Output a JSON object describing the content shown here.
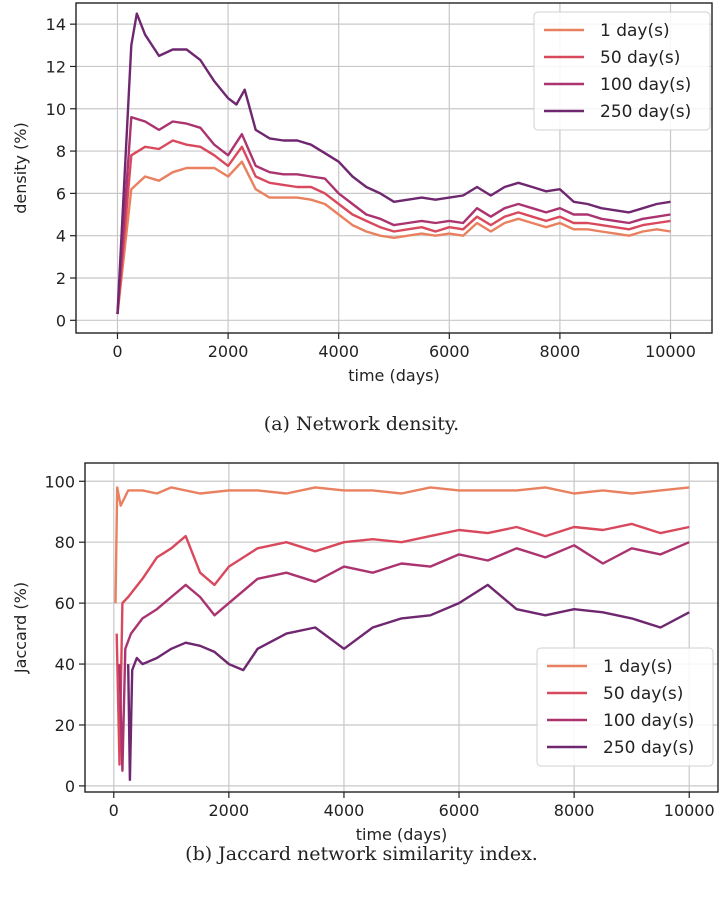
{
  "colors": {
    "1 day(s)": "#e9805f",
    "50 day(s)": "#d9495e",
    "100 day(s)": "#ab3470",
    "250 day(s)": "#6f2770"
  },
  "chart_data": [
    {
      "type": "line",
      "title": "",
      "caption": "(a) Network density.",
      "xlabel": "time (days)",
      "ylabel": "density (%)",
      "xlim": [
        -750,
        10750
      ],
      "ylim": [
        -0.6,
        15
      ],
      "xticks": [
        0,
        2000,
        4000,
        6000,
        8000,
        10000
      ],
      "yticks": [
        0,
        2,
        4,
        6,
        8,
        10,
        12,
        14
      ],
      "grid": true,
      "legend": "top-right",
      "series": [
        {
          "name": "1 day(s)",
          "x": [
            0,
            250,
            500,
            750,
            1000,
            1250,
            1500,
            1750,
            2000,
            2250,
            2500,
            2750,
            3000,
            3250,
            3500,
            3750,
            4000,
            4250,
            4500,
            4750,
            5000,
            5250,
            5500,
            5750,
            6000,
            6250,
            6500,
            6750,
            7000,
            7250,
            7500,
            7750,
            8000,
            8250,
            8500,
            8750,
            9000,
            9250,
            9500,
            9750,
            10000
          ],
          "y": [
            0.3,
            6.2,
            6.8,
            6.6,
            7.0,
            7.2,
            7.2,
            7.2,
            6.8,
            7.5,
            6.2,
            5.8,
            5.8,
            5.8,
            5.7,
            5.5,
            5.0,
            4.5,
            4.2,
            4.0,
            3.9,
            4.0,
            4.1,
            4.0,
            4.1,
            4.0,
            4.6,
            4.2,
            4.6,
            4.8,
            4.6,
            4.4,
            4.6,
            4.3,
            4.3,
            4.2,
            4.1,
            4.0,
            4.2,
            4.3,
            4.2
          ]
        },
        {
          "name": "50 day(s)",
          "x": [
            0,
            250,
            500,
            750,
            1000,
            1250,
            1500,
            1750,
            2000,
            2250,
            2500,
            2750,
            3000,
            3250,
            3500,
            3750,
            4000,
            4250,
            4500,
            4750,
            5000,
            5250,
            5500,
            5750,
            6000,
            6250,
            6500,
            6750,
            7000,
            7250,
            7500,
            7750,
            8000,
            8250,
            8500,
            8750,
            9000,
            9250,
            9500,
            9750,
            10000
          ],
          "y": [
            0.3,
            7.8,
            8.2,
            8.1,
            8.5,
            8.3,
            8.2,
            7.8,
            7.3,
            8.2,
            6.8,
            6.5,
            6.4,
            6.3,
            6.3,
            6.0,
            5.5,
            5.0,
            4.7,
            4.4,
            4.2,
            4.3,
            4.4,
            4.2,
            4.4,
            4.3,
            4.9,
            4.5,
            4.9,
            5.1,
            4.9,
            4.7,
            4.9,
            4.6,
            4.6,
            4.5,
            4.4,
            4.3,
            4.5,
            4.6,
            4.7
          ]
        },
        {
          "name": "100 day(s)",
          "x": [
            0,
            250,
            500,
            750,
            1000,
            1250,
            1500,
            1750,
            2000,
            2250,
            2500,
            2750,
            3000,
            3250,
            3500,
            3750,
            4000,
            4250,
            4500,
            4750,
            5000,
            5250,
            5500,
            5750,
            6000,
            6250,
            6500,
            6750,
            7000,
            7250,
            7500,
            7750,
            8000,
            8250,
            8500,
            8750,
            9000,
            9250,
            9500,
            9750,
            10000
          ],
          "y": [
            0.3,
            9.6,
            9.4,
            9.0,
            9.4,
            9.3,
            9.1,
            8.3,
            7.8,
            8.8,
            7.3,
            7.0,
            6.9,
            6.9,
            6.8,
            6.7,
            6.0,
            5.5,
            5.0,
            4.8,
            4.5,
            4.6,
            4.7,
            4.6,
            4.7,
            4.6,
            5.3,
            4.9,
            5.3,
            5.5,
            5.3,
            5.1,
            5.3,
            5.0,
            5.0,
            4.8,
            4.7,
            4.6,
            4.8,
            4.9,
            5.0
          ]
        },
        {
          "name": "250 day(s)",
          "x": [
            0,
            250,
            350,
            500,
            750,
            1000,
            1250,
            1500,
            1750,
            2000,
            2150,
            2300,
            2500,
            2750,
            3000,
            3250,
            3500,
            3750,
            4000,
            4250,
            4500,
            4750,
            5000,
            5250,
            5500,
            5750,
            6000,
            6250,
            6500,
            6750,
            7000,
            7250,
            7500,
            7750,
            8000,
            8250,
            8500,
            8750,
            9000,
            9250,
            9500,
            9750,
            10000
          ],
          "y": [
            0.3,
            13.0,
            14.5,
            13.5,
            12.5,
            12.8,
            12.8,
            12.3,
            11.3,
            10.5,
            10.2,
            10.9,
            9.0,
            8.6,
            8.5,
            8.5,
            8.3,
            7.9,
            7.5,
            6.8,
            6.3,
            6.0,
            5.6,
            5.7,
            5.8,
            5.7,
            5.8,
            5.9,
            6.3,
            5.9,
            6.3,
            6.5,
            6.3,
            6.1,
            6.2,
            5.6,
            5.5,
            5.3,
            5.2,
            5.1,
            5.3,
            5.5,
            5.6
          ]
        }
      ]
    },
    {
      "type": "line",
      "title": "",
      "caption": "(b) Jaccard network similarity index.",
      "xlabel": "time (days)",
      "ylabel": "Jaccard (%)",
      "xlim": [
        -500,
        10500
      ],
      "ylim": [
        -2,
        106
      ],
      "xticks": [
        0,
        2000,
        4000,
        6000,
        8000,
        10000
      ],
      "yticks": [
        0,
        20,
        40,
        60,
        80,
        100
      ],
      "grid": true,
      "legend": "lower-right",
      "series": [
        {
          "name": "1 day(s)",
          "x": [
            30,
            60,
            120,
            250,
            500,
            750,
            1000,
            1500,
            2000,
            2500,
            3000,
            3500,
            4000,
            4500,
            5000,
            5500,
            6000,
            6500,
            7000,
            7500,
            8000,
            8500,
            9000,
            9500,
            10000
          ],
          "y": [
            60,
            98,
            92,
            97,
            97,
            96,
            98,
            96,
            97,
            97,
            96,
            98,
            97,
            97,
            96,
            98,
            97,
            97,
            97,
            98,
            96,
            97,
            96,
            97,
            98
          ]
        },
        {
          "name": "50 day(s)",
          "x": [
            50,
            100,
            150,
            250,
            500,
            750,
            1000,
            1250,
            1500,
            1750,
            2000,
            2500,
            3000,
            3500,
            4000,
            4500,
            5000,
            5500,
            6000,
            6500,
            7000,
            7500,
            8000,
            8500,
            9000,
            9500,
            10000
          ],
          "y": [
            50,
            7,
            60,
            62,
            68,
            75,
            78,
            82,
            70,
            66,
            72,
            78,
            80,
            77,
            80,
            81,
            80,
            82,
            84,
            83,
            85,
            82,
            85,
            84,
            86,
            83,
            85
          ]
        },
        {
          "name": "100 day(s)",
          "x": [
            100,
            150,
            200,
            300,
            500,
            750,
            1000,
            1250,
            1500,
            1750,
            2000,
            2500,
            3000,
            3500,
            4000,
            4500,
            5000,
            5500,
            6000,
            6500,
            7000,
            7500,
            8000,
            8500,
            9000,
            9500,
            10000
          ],
          "y": [
            40,
            5,
            45,
            50,
            55,
            58,
            62,
            66,
            62,
            56,
            60,
            68,
            70,
            67,
            72,
            70,
            73,
            72,
            76,
            74,
            78,
            75,
            79,
            73,
            78,
            76,
            80
          ]
        },
        {
          "name": "250 day(s)",
          "x": [
            250,
            280,
            320,
            400,
            500,
            750,
            1000,
            1250,
            1500,
            1750,
            2000,
            2250,
            2500,
            3000,
            3500,
            4000,
            4500,
            5000,
            5500,
            6000,
            6500,
            7000,
            7500,
            8000,
            8500,
            9000,
            9500,
            10000
          ],
          "y": [
            40,
            2,
            38,
            42,
            40,
            42,
            45,
            47,
            46,
            44,
            40,
            38,
            45,
            50,
            52,
            45,
            52,
            55,
            56,
            60,
            66,
            58,
            56,
            58,
            57,
            55,
            52,
            57
          ]
        }
      ]
    }
  ]
}
